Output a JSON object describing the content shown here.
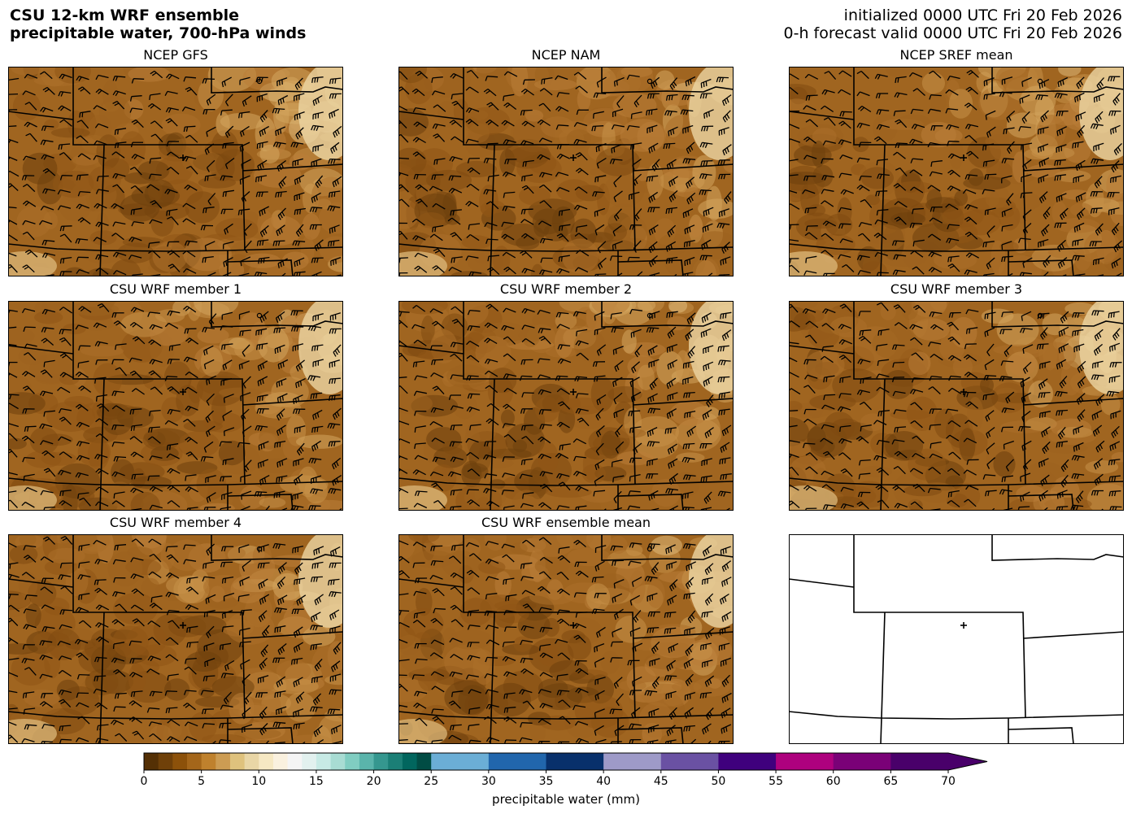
{
  "header": {
    "title_line1": "CSU 12-km WRF ensemble",
    "title_line2": "precipitable water, 700-hPa winds",
    "init_text": "initialized 0000 UTC Fri 20 Feb 2026",
    "valid_text": "0-h forecast valid 0000 UTC Fri 20 Feb 2026"
  },
  "panels": [
    {
      "title": "NCEP GFS",
      "variant": "gfs",
      "filled": true
    },
    {
      "title": "NCEP NAM",
      "variant": "nam",
      "filled": true
    },
    {
      "title": "NCEP SREF mean",
      "variant": "sref",
      "filled": true
    },
    {
      "title": "CSU WRF member 1",
      "variant": "m1",
      "filled": true
    },
    {
      "title": "CSU WRF member 2",
      "variant": "m2",
      "filled": true
    },
    {
      "title": "CSU WRF member 3",
      "variant": "m3",
      "filled": true
    },
    {
      "title": "CSU WRF member 4",
      "variant": "m4",
      "filled": true
    },
    {
      "title": "CSU WRF ensemble mean",
      "variant": "mean",
      "filled": true
    },
    {
      "title": "",
      "variant": "blank",
      "filled": false
    }
  ],
  "chart_data": {
    "type": "heatmap",
    "colorbar": {
      "label": "precipitable water (mm)",
      "min": 0,
      "max": 70,
      "ticks": [
        0,
        5,
        10,
        15,
        20,
        25,
        30,
        35,
        40,
        45,
        50,
        55,
        60,
        65,
        70
      ],
      "tick_labels": [
        "0",
        "5",
        "10",
        "15",
        "20",
        "25",
        "30",
        "35",
        "40",
        "45",
        "50",
        "55",
        "60",
        "65",
        "70"
      ],
      "extend": "max",
      "segments": [
        {
          "from": 0,
          "to": 25,
          "colors": [
            "#543005",
            "#6f4009",
            "#8c510a",
            "#a4661a",
            "#bf812d",
            "#cc9c53",
            "#dfc27d",
            "#e9d6a6",
            "#f6e8c3",
            "#faf1df",
            "#f5f5f5",
            "#e2f1ef",
            "#c7eae5",
            "#a8dcd3",
            "#80cdc1",
            "#5ab4ab",
            "#35978f",
            "#1b7f76",
            "#01665e",
            "#014c44"
          ]
        },
        {
          "from": 25,
          "to": 40,
          "colors": [
            "#6baed6",
            "#2166ac",
            "#08306b"
          ]
        },
        {
          "from": 40,
          "to": 55,
          "colors": [
            "#9e9ac8",
            "#6a51a3",
            "#3f007d"
          ]
        },
        {
          "from": 55,
          "to": 70,
          "colors": [
            "#ae017e",
            "#7a0177",
            "#49006a"
          ]
        }
      ]
    },
    "field_range_shown_mm": [
      0,
      10
    ]
  },
  "colors": {
    "pw_dark": "#7a4a10",
    "pw_mid": "#a8702a",
    "pw_light": "#e6cc95",
    "border": "#000000"
  }
}
